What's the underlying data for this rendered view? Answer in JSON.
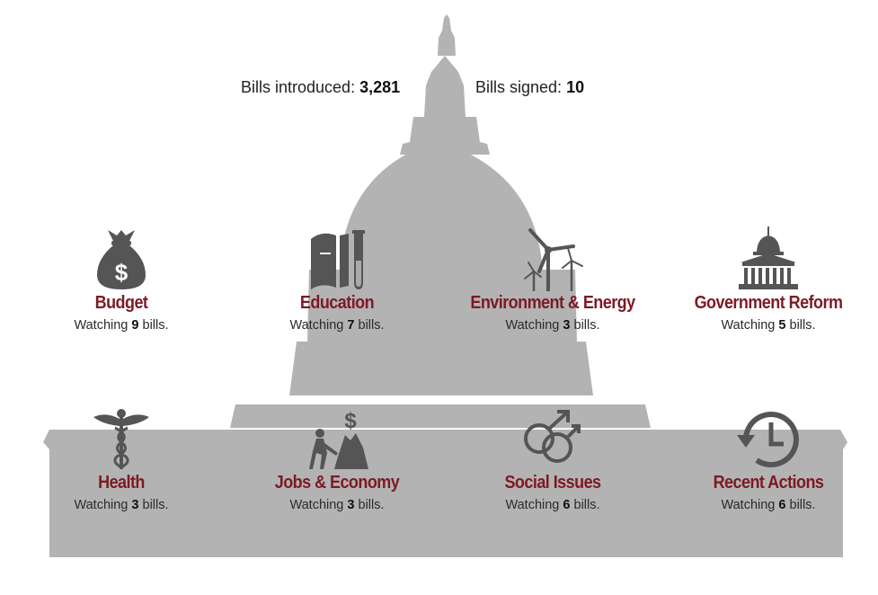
{
  "stats": {
    "introduced_label": "Bills introduced:",
    "introduced_value": "3,281",
    "signed_label": "Bills signed:",
    "signed_value": "10"
  },
  "watch_prefix": "Watching",
  "watch_suffix": "bills.",
  "colors": {
    "title": "#7d1a24",
    "capitol": "#b3b3b3",
    "icon": "#555555"
  },
  "categories": [
    {
      "title": "Budget",
      "count": "9",
      "icon": "money-bag-icon"
    },
    {
      "title": "Education",
      "count": "7",
      "icon": "books-test-tube-icon"
    },
    {
      "title": "Environment & Energy",
      "count": "3",
      "icon": "wind-turbine-icon"
    },
    {
      "title": "Government Reform",
      "count": "5",
      "icon": "capitol-icon"
    },
    {
      "title": "Health",
      "count": "3",
      "icon": "caduceus-icon"
    },
    {
      "title": "Jobs & Economy",
      "count": "3",
      "icon": "worker-shovel-icon"
    },
    {
      "title": "Social Issues",
      "count": "6",
      "icon": "gender-symbols-icon"
    },
    {
      "title": "Recent Actions",
      "count": "6",
      "icon": "clock-history-icon"
    }
  ]
}
